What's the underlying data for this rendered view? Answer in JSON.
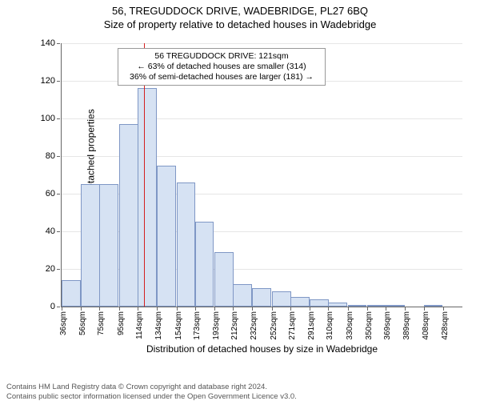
{
  "title_line1": "56, TREGUDDOCK DRIVE, WADEBRIDGE, PL27 6BQ",
  "title_line2": "Size of property relative to detached houses in Wadebridge",
  "y_axis_label": "Number of detached properties",
  "x_axis_label": "Distribution of detached houses by size in Wadebridge",
  "ylim": [
    0,
    140
  ],
  "ytick_step": 20,
  "grid_color": "#e6e6e6",
  "bar_fill": "#d6e2f3",
  "bar_border": "#7f97c5",
  "background_color": "#ffffff",
  "axis_color": "#666666",
  "ref_line": {
    "x_value": 121,
    "color": "#d42020"
  },
  "bins": [
    {
      "label": "36sqm",
      "x": 36,
      "count": 14
    },
    {
      "label": "56sqm",
      "x": 56,
      "count": 65
    },
    {
      "label": "75sqm",
      "x": 75,
      "count": 65
    },
    {
      "label": "95sqm",
      "x": 95,
      "count": 97
    },
    {
      "label": "114sqm",
      "x": 114,
      "count": 116
    },
    {
      "label": "134sqm",
      "x": 134,
      "count": 75
    },
    {
      "label": "154sqm",
      "x": 154,
      "count": 66
    },
    {
      "label": "173sqm",
      "x": 173,
      "count": 45
    },
    {
      "label": "193sqm",
      "x": 193,
      "count": 29
    },
    {
      "label": "212sqm",
      "x": 212,
      "count": 12
    },
    {
      "label": "232sqm",
      "x": 232,
      "count": 10
    },
    {
      "label": "252sqm",
      "x": 252,
      "count": 8
    },
    {
      "label": "271sqm",
      "x": 271,
      "count": 5
    },
    {
      "label": "291sqm",
      "x": 291,
      "count": 4
    },
    {
      "label": "310sqm",
      "x": 310,
      "count": 2
    },
    {
      "label": "330sqm",
      "x": 330,
      "count": 1
    },
    {
      "label": "350sqm",
      "x": 350,
      "count": 1
    },
    {
      "label": "369sqm",
      "x": 369,
      "count": 1
    },
    {
      "label": "389sqm",
      "x": 389,
      "count": 0
    },
    {
      "label": "408sqm",
      "x": 408,
      "count": 1
    },
    {
      "label": "428sqm",
      "x": 428,
      "count": 0
    }
  ],
  "x_domain": [
    36,
    447
  ],
  "callout": {
    "line1": "56 TREGUDDOCK DRIVE: 121sqm",
    "line2": "← 63% of detached houses are smaller (314)",
    "line3": "36% of semi-detached houses are larger (181) →"
  },
  "footer_line1": "Contains HM Land Registry data © Crown copyright and database right 2024.",
  "footer_line2": "Contains public sector information licensed under the Open Government Licence v3.0."
}
